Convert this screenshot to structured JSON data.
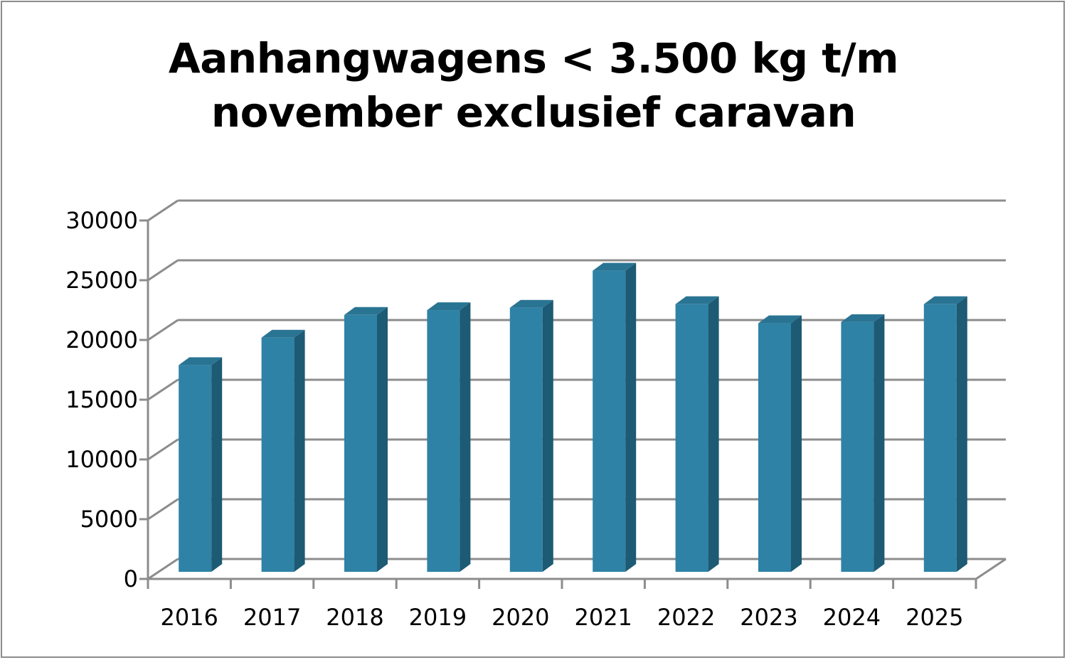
{
  "chart_data": {
    "type": "bar",
    "title_lines": [
      "Aanhangwagens < 3.500 kg t/m",
      "november exclusief caravan"
    ],
    "categories": [
      "2016",
      "2017",
      "2018",
      "2019",
      "2020",
      "2021",
      "2022",
      "2023",
      "2024",
      "2025"
    ],
    "values": [
      17300,
      19600,
      21500,
      21900,
      22100,
      25200,
      22400,
      20800,
      20900,
      22400
    ],
    "ylim": [
      0,
      30000
    ],
    "yticks": [
      "0",
      "5000",
      "10000",
      "15000",
      "20000",
      "25000",
      "30000"
    ],
    "grid": true,
    "style": "3d-column",
    "colors": {
      "bar_front": "#2e82a6",
      "bar_side": "#1d5a73",
      "bar_top": "#2a7493",
      "axis": "#8c8c8c"
    }
  }
}
